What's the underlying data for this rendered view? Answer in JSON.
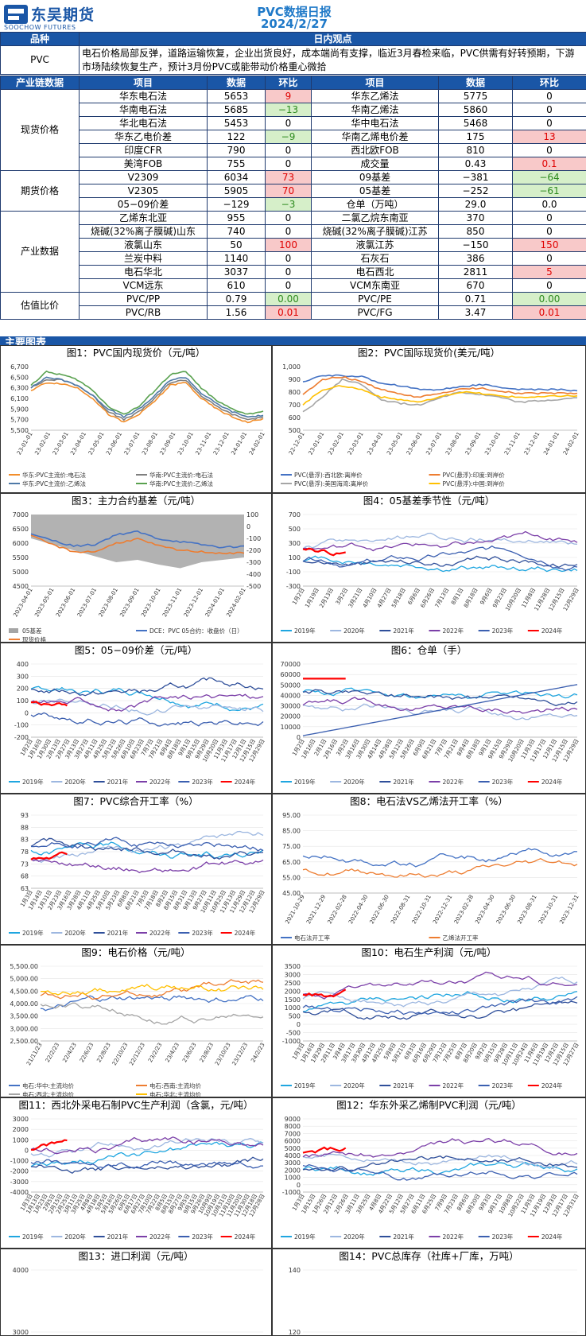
{
  "header": {
    "company_cn": "东吴期货",
    "company_en": "SOOCHOW FUTURES",
    "title": "PVC数据日报",
    "date": "2024/2/27"
  },
  "table_head": {
    "col1": "品种",
    "col2": "日内观点"
  },
  "view": {
    "product": "PVC",
    "text": "电石价格局部反弹，道路运输恢复，企业出货良好，成本端尚有支撑，临近3月春检来临，PVC供需有好转预期，下游市场陆续恢复生产，预计3月份PVC或能带动价格重心微拾"
  },
  "data_head": {
    "c1": "产业链数据",
    "c2": "项目",
    "c3": "数据",
    "c4": "环比",
    "c5": "项目",
    "c6": "数据",
    "c7": "环比"
  },
  "sections": [
    {
      "name": "现货价格",
      "rows": [
        [
          "华东电石法",
          "5653",
          "9",
          "华东乙烯法",
          "5775",
          "0"
        ],
        [
          "华南电石法",
          "5685",
          "−13",
          "华南乙烯法",
          "5860",
          "0"
        ],
        [
          "华北电石法",
          "5453",
          "0",
          "华中电石法",
          "5468",
          "0"
        ],
        [
          "华东乙电价差",
          "122",
          "−9",
          "华南乙烯电价差",
          "175",
          "13"
        ],
        [
          "印度CFR",
          "790",
          "0",
          "西北欧FOB",
          "810",
          "0"
        ],
        [
          "美湾FOB",
          "755",
          "0",
          "成交量",
          "0.43",
          "0.1"
        ]
      ]
    },
    {
      "name": "期货价格",
      "rows": [
        [
          "V2309",
          "6034",
          "73",
          "09基差",
          "−381",
          "−64"
        ],
        [
          "V2305",
          "5905",
          "70",
          "05基差",
          "−252",
          "−61"
        ],
        [
          "05−09价差",
          "−129",
          "−3",
          "仓单（万吨）",
          "29.0",
          "0.0"
        ]
      ]
    },
    {
      "name": "产业数据",
      "rows": [
        [
          "乙烯东北亚",
          "955",
          "0",
          "二氯乙烷东南亚",
          "370",
          "0"
        ],
        [
          "烧碱(32%离子膜碱)山东",
          "740",
          "0",
          "烧碱(32%离子膜碱)江苏",
          "850",
          "0"
        ],
        [
          "液氯山东",
          "50",
          "100",
          "液氯江苏",
          "−150",
          "150"
        ],
        [
          "兰炭中料",
          "1140",
          "0",
          "石灰石",
          "386",
          "0"
        ],
        [
          "电石华北",
          "3037",
          "0",
          "电石西北",
          "2811",
          "5"
        ],
        [
          "VCM远东",
          "610",
          "0",
          "VCM东南亚",
          "670",
          "0"
        ]
      ]
    },
    {
      "name": "估值比价",
      "rows": [
        [
          "PVC/PP",
          "0.79",
          "0.00",
          "PVC/PE",
          "0.71",
          "0.00"
        ],
        [
          "PVC/RB",
          "1.56",
          "0.01",
          "PVC/FG",
          "3.47",
          "0.01"
        ]
      ]
    }
  ],
  "highlight": {
    "red": [
      "9",
      "13",
      "0.1",
      "73",
      "70",
      "100",
      "150",
      "5",
      "0.01"
    ],
    "green": [
      "−13",
      "−9",
      "−64",
      "−61",
      "−3",
      "0.00"
    ]
  },
  "charts_section": "主要图表",
  "chart_data": [
    {
      "type": "line",
      "title": "图1：PVC国内现货价（元/吨）",
      "ylim": [
        5500,
        6700
      ],
      "yticks": [
        "6,700",
        "6,500",
        "6,300",
        "6,100",
        "5,900",
        "5,700",
        "5,500"
      ],
      "xticks": [
        "23-01-01",
        "23-02-01",
        "23-03-01",
        "23-04-01",
        "23-05-01",
        "23-06-01",
        "23-07-01",
        "23-08-01",
        "23-09-01",
        "23-10-01",
        "23-11-01",
        "23-12-01",
        "24-01-01",
        "24-02-01"
      ],
      "series": [
        {
          "name": "华东:PVC主流价:电石法",
          "color": "#f28e2b",
          "values": [
            6250,
            6400,
            6380,
            6300,
            6100,
            5800,
            5650,
            5800,
            6050,
            6350,
            6400,
            6100,
            5900,
            5750,
            5650,
            5720
          ]
        },
        {
          "name": "华南:PVC主流价:电石法",
          "color": "#7f7f7f",
          "values": [
            6300,
            6450,
            6450,
            6350,
            6150,
            5850,
            5700,
            5850,
            6100,
            6400,
            6450,
            6150,
            5950,
            5800,
            5700,
            5750
          ]
        },
        {
          "name": "华东:PVC主流价:乙烯法",
          "color": "#4e79a7",
          "values": [
            6300,
            6500,
            6450,
            6350,
            6150,
            5900,
            5750,
            5900,
            6150,
            6450,
            6500,
            6200,
            6000,
            5850,
            5750,
            5780
          ]
        },
        {
          "name": "华南:PVC主流价:乙烯法",
          "color": "#59a14f",
          "values": [
            6350,
            6600,
            6550,
            6450,
            6250,
            5950,
            5800,
            5950,
            6250,
            6550,
            6600,
            6300,
            6050,
            5900,
            5800,
            5860
          ]
        }
      ]
    },
    {
      "type": "line",
      "title": "图2：PVC国际现货价(美元/吨）",
      "ylim": [
        500,
        1000
      ],
      "yticks": [
        "1,000",
        "900",
        "800",
        "700",
        "600",
        "500"
      ],
      "xticks": [
        "22-12-01",
        "23-01-01",
        "23-02-01",
        "23-03-01",
        "23-04-01",
        "23-05-01",
        "23-06-01",
        "23-07-01",
        "23-08-01",
        "23-09-01",
        "23-10-01",
        "23-11-01",
        "23-12-01",
        "24-01-01",
        "24-02-01"
      ],
      "series": [
        {
          "name": "PVC(悬浮):西北欧:离岸价",
          "color": "#4472c4",
          "values": [
            880,
            930,
            930,
            920,
            870,
            850,
            820,
            820,
            840,
            860,
            840,
            820,
            820,
            820,
            810
          ]
        },
        {
          "name": "PVC(悬浮):印度:到岸价",
          "color": "#ed7d31",
          "values": [
            780,
            900,
            920,
            880,
            820,
            780,
            760,
            790,
            820,
            830,
            810,
            790,
            790,
            790,
            790
          ]
        },
        {
          "name": "PVC(悬浮):美国海湾:离岸价",
          "color": "#a5a5a5",
          "values": [
            640,
            760,
            900,
            860,
            740,
            710,
            700,
            760,
            800,
            780,
            760,
            720,
            730,
            740,
            755
          ]
        },
        {
          "name": "PVC(悬浮):中国:到岸价",
          "color": "#ffc000",
          "values": [
            700,
            820,
            850,
            820,
            760,
            740,
            720,
            760,
            800,
            790,
            770,
            760,
            760,
            770,
            770
          ]
        }
      ]
    },
    {
      "type": "line",
      "title": "图3：主力合约基差（元/吨）",
      "ylim": [
        4500,
        7000
      ],
      "yticks": [
        "7000",
        "6500",
        "6000",
        "5500",
        "5000",
        "4500"
      ],
      "y2ticks": [
        "100",
        "0",
        "-100",
        "-200",
        "-300",
        "-400",
        "-500"
      ],
      "xticks": [
        "2023-04-01",
        "2023-05-01",
        "2023-06-01",
        "2023-07-01",
        "2023-08-01",
        "2023-09-01",
        "2023-10-01",
        "2023-11-01",
        "2023-12-01",
        "2024-01-01",
        "2024-02-01"
      ],
      "series": [
        {
          "name": "05基差",
          "color": "#a5a5a5",
          "values": [
            -100,
            -150,
            -200,
            -250,
            -300,
            -280,
            -320,
            -350,
            -300,
            -280,
            -260
          ]
        },
        {
          "name": "DCE：PVC 05合约：收盘价（日）",
          "color": "#4472c4",
          "values": [
            6300,
            6100,
            5900,
            5950,
            6300,
            6400,
            6150,
            6050,
            5950,
            5850,
            5900
          ]
        },
        {
          "name": "现货价格",
          "color": "#ed7d31",
          "values": [
            6250,
            5950,
            5700,
            5700,
            6000,
            6150,
            5900,
            5750,
            5700,
            5650,
            5650
          ]
        }
      ]
    },
    {
      "type": "line",
      "title": "图4：05基差季节性（元/吨）",
      "ylim": [
        -300,
        700
      ],
      "yticks": [
        "700",
        "500",
        "300",
        "100",
        "-100",
        "-300"
      ],
      "xticks": [
        "1月2日",
        "1月19日",
        "2月13日",
        "3月2日",
        "3月21日",
        "4月10日",
        "4月27日",
        "5月18日",
        "6月6日",
        "6月26日",
        "7月13日",
        "8月1日",
        "8月18日",
        "9月6日",
        "9月23日",
        "10月20日",
        "11月8日",
        "11月28日",
        "12月15日",
        "12月29日"
      ],
      "series": [
        "2019年",
        "2020年",
        "2021年",
        "2022年",
        "2023年",
        "2024年"
      ]
    },
    {
      "type": "line",
      "title": "图5：05−09价差（元/吨）",
      "ylim": [
        -200,
        400
      ],
      "yticks": [
        "400",
        "300",
        "200",
        "100",
        "0",
        "-100",
        "-200"
      ],
      "xticks": [
        "1月2日",
        "1月16日",
        "1月30日",
        "2月13日",
        "2月27日",
        "3月13日",
        "3月27日",
        "4月11日",
        "4月25日",
        "5月12日",
        "5月26日",
        "6月10日",
        "6月23日",
        "7月7日",
        "7月21日",
        "8月4日",
        "8月18日",
        "9月1日",
        "9月15日",
        "9月29日",
        "10月20日",
        "11月3日",
        "11月17日",
        "12月1日",
        "12月15日",
        "12月29日"
      ],
      "series": [
        "2019年",
        "2020年",
        "2021年",
        "2022年",
        "2023年",
        "2024年"
      ]
    },
    {
      "type": "line",
      "title": "图6：仓单（手）",
      "ylim": [
        0,
        70000
      ],
      "yticks": [
        "70000",
        "60000",
        "50000",
        "40000",
        "30000",
        "20000",
        "10000",
        "0"
      ],
      "xticks": [
        "1月2日",
        "1月16日",
        "2月1日",
        "2月16日",
        "3月2日",
        "3月16日",
        "3月30日",
        "4月14日",
        "4月28日",
        "5月12日",
        "5月26日",
        "6月9日",
        "6月21日",
        "7月7日",
        "7月21日",
        "8月4日",
        "8月18日",
        "9月1日",
        "9月15日",
        "9月29日",
        "10月20日",
        "11月3日",
        "11月17日",
        "12月1日",
        "12月15日",
        "12月29日"
      ],
      "series": [
        "2019年",
        "2020年",
        "2021年",
        "2022年",
        "2023年",
        "2024年"
      ]
    },
    {
      "type": "line",
      "title": "图7：PVC综合开工率（%）",
      "ylim": [
        63,
        93
      ],
      "yticks": [
        "93",
        "88",
        "83",
        "78",
        "73",
        "68",
        "63"
      ],
      "xticks": [
        "1月3日",
        "1月14日",
        "1月31日",
        "2月23日",
        "3月16日",
        "3月28日",
        "4月11日",
        "4月25日",
        "5月10日",
        "5月23日",
        "6月8日",
        "6月21日",
        "7月5日",
        "7月18日",
        "8月2日",
        "8月15日",
        "8月31日",
        "9月13日",
        "9月27日",
        "10月11日",
        "10月25日",
        "11月13日",
        "11月29日",
        "12月12日",
        "12月29日"
      ],
      "series": [
        "2019年",
        "2020年",
        "2021年",
        "2022年",
        "2023年",
        "2024年"
      ]
    },
    {
      "type": "line",
      "title": "图8：电石法VS乙烯法开工率（%）",
      "ylim": [
        45,
        95
      ],
      "yticks": [
        "95.00",
        "85.00",
        "75.00",
        "65.00",
        "55.00",
        "45.00"
      ],
      "xticks": [
        "2021-10-29",
        "2021-12-29",
        "2022-02-28",
        "2022-04-30",
        "2022-06-30",
        "2022-08-31",
        "2022-10-31",
        "2022-12-31",
        "2023-02-28",
        "2023-04-30",
        "2023-06-30",
        "2023-08-31",
        "2023-10-31",
        "2023-12-31"
      ],
      "series": [
        "电石法开工率",
        "乙烯法开工率"
      ]
    },
    {
      "type": "line",
      "title": "图9：电石价格（元/吨）",
      "ylim": [
        2500,
        5500
      ],
      "yticks": [
        "5,500.00",
        "5,000.00",
        "4,500.00",
        "4,000.00",
        "3,500.00",
        "3,000.00",
        "2,500.00"
      ],
      "xticks": [
        "21/11/23",
        "22/2/23",
        "22/4/23",
        "22/6/23",
        "22/8/23",
        "22/10/23",
        "22/12/23",
        "23/2/23",
        "23/4/23",
        "23/6/23",
        "23/8/23",
        "23/10/23",
        "23/12/23",
        "24/2/23"
      ],
      "series": [
        "电石:华中:主流均价",
        "电石:西南:主流均价",
        "电石:西北:主流均价",
        "电石:华北:主流均价"
      ]
    },
    {
      "type": "line",
      "title": "图10：电石生产利润（元/吨）",
      "ylim": [
        -1000,
        3500
      ],
      "yticks": [
        "3500",
        "3000",
        "2500",
        "2000",
        "1500",
        "1000",
        "500",
        "0",
        "-500",
        "-1000"
      ],
      "xticks": [
        "1月3日",
        "1月16日",
        "1月29日",
        "2月11日",
        "3月4日",
        "3月17日",
        "3月30日",
        "4月12日",
        "4月25日",
        "5月8日",
        "5月21日",
        "6月3日",
        "6月16日",
        "6月29日",
        "7月12日",
        "7月25日",
        "8月7日",
        "8月20日",
        "9月2日",
        "9月15日",
        "9月28日",
        "10月11日",
        "10月24日",
        "11月6日",
        "11月19日",
        "12月2日",
        "12月15日",
        "12月27日"
      ],
      "series": [
        "2019年",
        "2020年",
        "2021年",
        "2022年",
        "2023年",
        "2024年"
      ]
    },
    {
      "type": "line",
      "title": "图11：西北外采电石制PVC生产利润（含氯，元/吨）",
      "ylim": [
        -4000,
        3000
      ],
      "yticks": [
        "3000",
        "2000",
        "1000",
        "0",
        "-1000",
        "-2000",
        "-3000",
        "-4000"
      ],
      "xticks": [
        "1月3日",
        "1月13日",
        "1月23日",
        "2月5日",
        "2月15日",
        "2月25日",
        "3月11日",
        "3月25日",
        "4月8日",
        "4月18日",
        "5月5日",
        "5月16日",
        "5月26日",
        "6月5日",
        "6月17日",
        "6月27日",
        "7月10日",
        "7月22日",
        "8月5日",
        "8月15日",
        "8月27日",
        "9月5日",
        "9月15日",
        "9月26日",
        "10月9日",
        "10月19日",
        "10月31日",
        "11月10日",
        "11月20日",
        "11月30日",
        "12月18日",
        "12月28日"
      ],
      "series": [
        "2019年",
        "2020年",
        "2021年",
        "2022年",
        "2023年",
        "2024年"
      ]
    },
    {
      "type": "line",
      "title": "图12：华东外采乙烯制PVC利润（元/吨）",
      "ylim": [
        -1000,
        9000
      ],
      "yticks": [
        "9000",
        "8000",
        "7000",
        "6000",
        "5000",
        "4000",
        "3000",
        "2000",
        "1000",
        "0",
        "-1000"
      ],
      "xticks": [
        "1月3日",
        "1月15日",
        "1月26日",
        "2月12日",
        "2月26日",
        "3月11日",
        "3月25日",
        "4月8日",
        "4月22日",
        "5月12日",
        "5月27日",
        "6月11日",
        "6月25日",
        "7月9日",
        "7月23日",
        "8月6日",
        "8月20日",
        "9月3日",
        "9月17日",
        "10月8日",
        "10月22日",
        "11月5日",
        "11月19日",
        "12月3日",
        "12月17日",
        "12月31日"
      ],
      "series": [
        "2019年",
        "2020年",
        "2021年",
        "2022年",
        "2023年",
        "2024年"
      ]
    },
    {
      "type": "line",
      "title": "图13：进口利润（元/吨）",
      "yticks": [
        "4000",
        "3000"
      ]
    },
    {
      "type": "line",
      "title": "图14：PVC总库存（社库+厂库，万吨）",
      "yticks": [
        "140",
        "120"
      ]
    }
  ]
}
